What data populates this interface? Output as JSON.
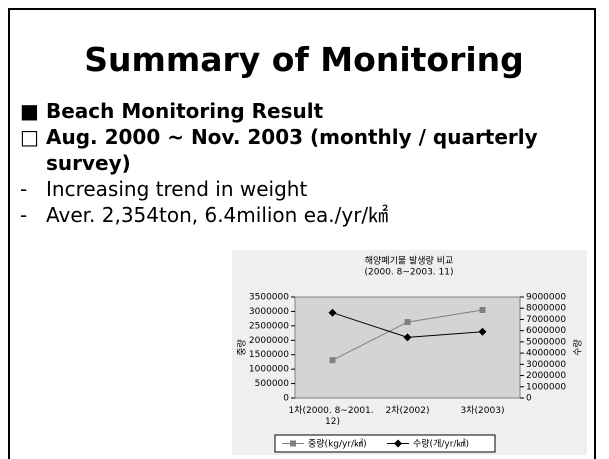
{
  "slide": {
    "title": "Summary of Monitoring",
    "bullets": [
      {
        "marker": "■",
        "text": "Beach Monitoring Result",
        "bold": true
      },
      {
        "marker": "□",
        "text": "Aug. 2000 ~ Nov. 2003 (monthly / quarterly survey)",
        "bold": true
      },
      {
        "marker": "-",
        "text": "Increasing trend in weight",
        "bold": false
      },
      {
        "marker": "-",
        "text": "Aver. 2,354ton, 6.4milion ea./yr/㎢",
        "bold": false
      }
    ]
  },
  "chart_data": {
    "type": "line",
    "title": [
      "해양폐기물 발생량 비교",
      "(2000. 8~2003. 11)"
    ],
    "categories": [
      "1차(2000. 8~2001. 12)",
      "2차(2002)",
      "3차(2003)"
    ],
    "ylabel": "중량",
    "y2label": "수량",
    "ylim": [
      0,
      3500000
    ],
    "yticks": [
      0,
      500000,
      1000000,
      1500000,
      2000000,
      2500000,
      3000000,
      3500000
    ],
    "y2lim": [
      0,
      9000000
    ],
    "y2ticks": [
      0,
      1000000,
      2000000,
      3000000,
      4000000,
      5000000,
      6000000,
      7000000,
      8000000,
      9000000
    ],
    "series": [
      {
        "name": "중량(kg/yr/㎢)",
        "color": "#7f7f7f",
        "marker": "square",
        "values": [
          1310000,
          2630000,
          3050000
        ]
      },
      {
        "name": "수량(개/yr/㎢)",
        "color": "#000000",
        "marker": "diamond",
        "axis": "y2",
        "values": [
          7600000,
          5400000,
          5900000
        ]
      }
    ],
    "legend": "bottom"
  }
}
